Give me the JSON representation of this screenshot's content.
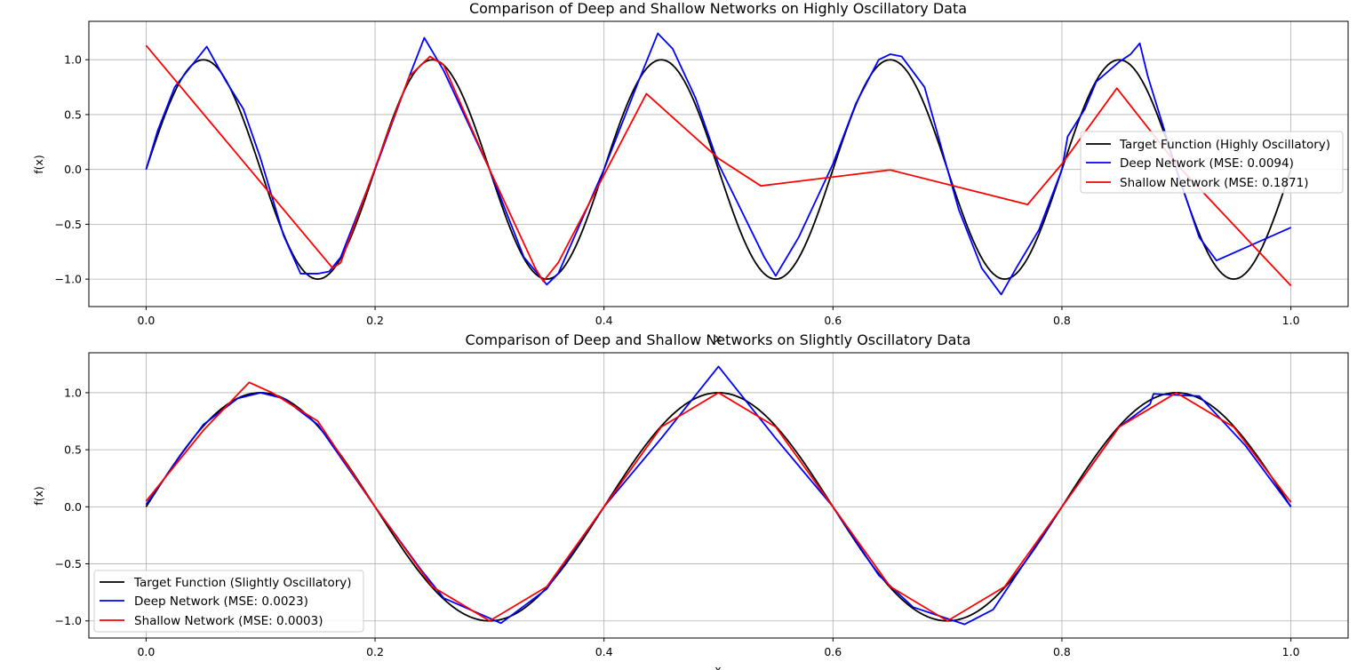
{
  "chart_data": [
    {
      "type": "line",
      "title": "Comparison of Deep and Shallow Networks on Highly Oscillatory Data",
      "xlabel": "x",
      "ylabel": "f(x)",
      "xlim": [
        -0.05,
        1.05
      ],
      "ylim": [
        -1.25,
        1.35
      ],
      "xticks": [
        0.0,
        0.2,
        0.4,
        0.6,
        0.8,
        1.0
      ],
      "xtick_labels": [
        "0.0",
        "0.2",
        "0.4",
        "0.6",
        "0.8",
        "1.0"
      ],
      "yticks": [
        -1.0,
        -0.5,
        0.0,
        0.5,
        1.0
      ],
      "ytick_labels": [
        "−1.0",
        "−0.5",
        "0.0",
        "0.5",
        "1.0"
      ],
      "grid": true,
      "legend_position": "center-right",
      "series": [
        {
          "name": "Target Function (Highly Oscillatory)",
          "color": "#000000",
          "function": "sin",
          "frequency": 5
        },
        {
          "name": "Deep Network (MSE: 0.0094)",
          "color": "#0000ff",
          "points": [
            [
              0.0,
              0.0
            ],
            [
              0.01,
              0.35
            ],
            [
              0.025,
              0.75
            ],
            [
              0.04,
              0.95
            ],
            [
              0.053,
              1.12
            ],
            [
              0.07,
              0.8
            ],
            [
              0.085,
              0.55
            ],
            [
              0.1,
              0.1
            ],
            [
              0.12,
              -0.6
            ],
            [
              0.135,
              -0.95
            ],
            [
              0.15,
              -0.95
            ],
            [
              0.16,
              -0.93
            ],
            [
              0.17,
              -0.8
            ],
            [
              0.2,
              0.0
            ],
            [
              0.23,
              0.85
            ],
            [
              0.243,
              1.2
            ],
            [
              0.26,
              0.9
            ],
            [
              0.3,
              0.0
            ],
            [
              0.33,
              -0.8
            ],
            [
              0.35,
              -1.05
            ],
            [
              0.36,
              -0.95
            ],
            [
              0.4,
              0.0
            ],
            [
              0.43,
              0.8
            ],
            [
              0.447,
              1.24
            ],
            [
              0.46,
              1.1
            ],
            [
              0.48,
              0.65
            ],
            [
              0.5,
              0.05
            ],
            [
              0.54,
              -0.8
            ],
            [
              0.55,
              -0.97
            ],
            [
              0.57,
              -0.62
            ],
            [
              0.6,
              0.05
            ],
            [
              0.62,
              0.6
            ],
            [
              0.64,
              1.0
            ],
            [
              0.65,
              1.05
            ],
            [
              0.66,
              1.03
            ],
            [
              0.68,
              0.75
            ],
            [
              0.7,
              0.0
            ],
            [
              0.71,
              -0.37
            ],
            [
              0.73,
              -0.9
            ],
            [
              0.747,
              -1.14
            ],
            [
              0.76,
              -0.9
            ],
            [
              0.78,
              -0.55
            ],
            [
              0.8,
              0.0
            ],
            [
              0.805,
              0.3
            ],
            [
              0.82,
              0.55
            ],
            [
              0.83,
              0.8
            ],
            [
              0.85,
              0.98
            ],
            [
              0.86,
              1.05
            ],
            [
              0.868,
              1.15
            ],
            [
              0.875,
              0.85
            ],
            [
              0.9,
              0.0
            ],
            [
              0.92,
              -0.62
            ],
            [
              0.935,
              -0.83
            ],
            [
              1.0,
              -0.53
            ]
          ]
        },
        {
          "name": "Shallow Network (MSE: 0.1871)",
          "color": "#ff0000",
          "points": [
            [
              0.0,
              1.13
            ],
            [
              0.163,
              -0.9
            ],
            [
              0.17,
              -0.85
            ],
            [
              0.21,
              0.3
            ],
            [
              0.23,
              0.85
            ],
            [
              0.248,
              1.03
            ],
            [
              0.26,
              0.95
            ],
            [
              0.3,
              0.0
            ],
            [
              0.34,
              -0.9
            ],
            [
              0.347,
              -1.02
            ],
            [
              0.36,
              -0.85
            ],
            [
              0.4,
              -0.05
            ],
            [
              0.437,
              0.69
            ],
            [
              0.5,
              0.1
            ],
            [
              0.537,
              -0.15
            ],
            [
              0.65,
              -0.005
            ],
            [
              0.77,
              -0.32
            ],
            [
              0.8,
              0.05
            ],
            [
              0.848,
              0.74
            ],
            [
              0.9,
              0.05
            ],
            [
              1.0,
              -1.06
            ]
          ]
        }
      ]
    },
    {
      "type": "line",
      "title": "Comparison of Deep and Shallow Networks on Slightly Oscillatory Data",
      "xlabel": "x",
      "ylabel": "f(x)",
      "xlim": [
        -0.05,
        1.05
      ],
      "ylim": [
        -1.15,
        1.35
      ],
      "xticks": [
        0.0,
        0.2,
        0.4,
        0.6,
        0.8,
        1.0
      ],
      "xtick_labels": [
        "0.0",
        "0.2",
        "0.4",
        "0.6",
        "0.8",
        "1.0"
      ],
      "yticks": [
        -1.0,
        -0.5,
        0.0,
        0.5,
        1.0
      ],
      "ytick_labels": [
        "−1.0",
        "−0.5",
        "0.0",
        "0.5",
        "1.0"
      ],
      "grid": true,
      "legend_position": "lower-left",
      "series": [
        {
          "name": "Target Function (Slightly Oscillatory)",
          "color": "#000000",
          "function": "sin",
          "frequency": 2.5
        },
        {
          "name": "Deep Network (MSE: 0.0023)",
          "color": "#0000ff",
          "points": [
            [
              0.0,
              0.02
            ],
            [
              0.03,
              0.45
            ],
            [
              0.05,
              0.72
            ],
            [
              0.08,
              0.95
            ],
            [
              0.1,
              1.0
            ],
            [
              0.12,
              0.95
            ],
            [
              0.15,
              0.72
            ],
            [
              0.2,
              0.0
            ],
            [
              0.24,
              -0.55
            ],
            [
              0.26,
              -0.8
            ],
            [
              0.31,
              -1.02
            ],
            [
              0.35,
              -0.72
            ],
            [
              0.4,
              0.0
            ],
            [
              0.45,
              0.6
            ],
            [
              0.5,
              1.23
            ],
            [
              0.55,
              0.6
            ],
            [
              0.6,
              0.0
            ],
            [
              0.64,
              -0.6
            ],
            [
              0.67,
              -0.88
            ],
            [
              0.715,
              -1.03
            ],
            [
              0.74,
              -0.9
            ],
            [
              0.8,
              0.0
            ],
            [
              0.85,
              0.7
            ],
            [
              0.877,
              0.9
            ],
            [
              0.88,
              0.99
            ],
            [
              0.9,
              0.98
            ],
            [
              0.92,
              0.97
            ],
            [
              0.96,
              0.54
            ],
            [
              1.0,
              0.0
            ]
          ]
        },
        {
          "name": "Shallow Network (MSE: 0.0003)",
          "color": "#ff0000",
          "points": [
            [
              0.0,
              0.05
            ],
            [
              0.05,
              0.67
            ],
            [
              0.09,
              1.09
            ],
            [
              0.11,
              1.0
            ],
            [
              0.15,
              0.75
            ],
            [
              0.2,
              0.0
            ],
            [
              0.25,
              -0.7
            ],
            [
              0.3,
              -1.0
            ],
            [
              0.35,
              -0.7
            ],
            [
              0.4,
              0.0
            ],
            [
              0.45,
              0.7
            ],
            [
              0.5,
              1.0
            ],
            [
              0.55,
              0.7
            ],
            [
              0.6,
              0.0
            ],
            [
              0.65,
              -0.7
            ],
            [
              0.7,
              -1.0
            ],
            [
              0.75,
              -0.7
            ],
            [
              0.8,
              0.0
            ],
            [
              0.85,
              0.7
            ],
            [
              0.9,
              1.0
            ],
            [
              0.95,
              0.7
            ],
            [
              1.0,
              0.04
            ]
          ]
        }
      ]
    }
  ]
}
